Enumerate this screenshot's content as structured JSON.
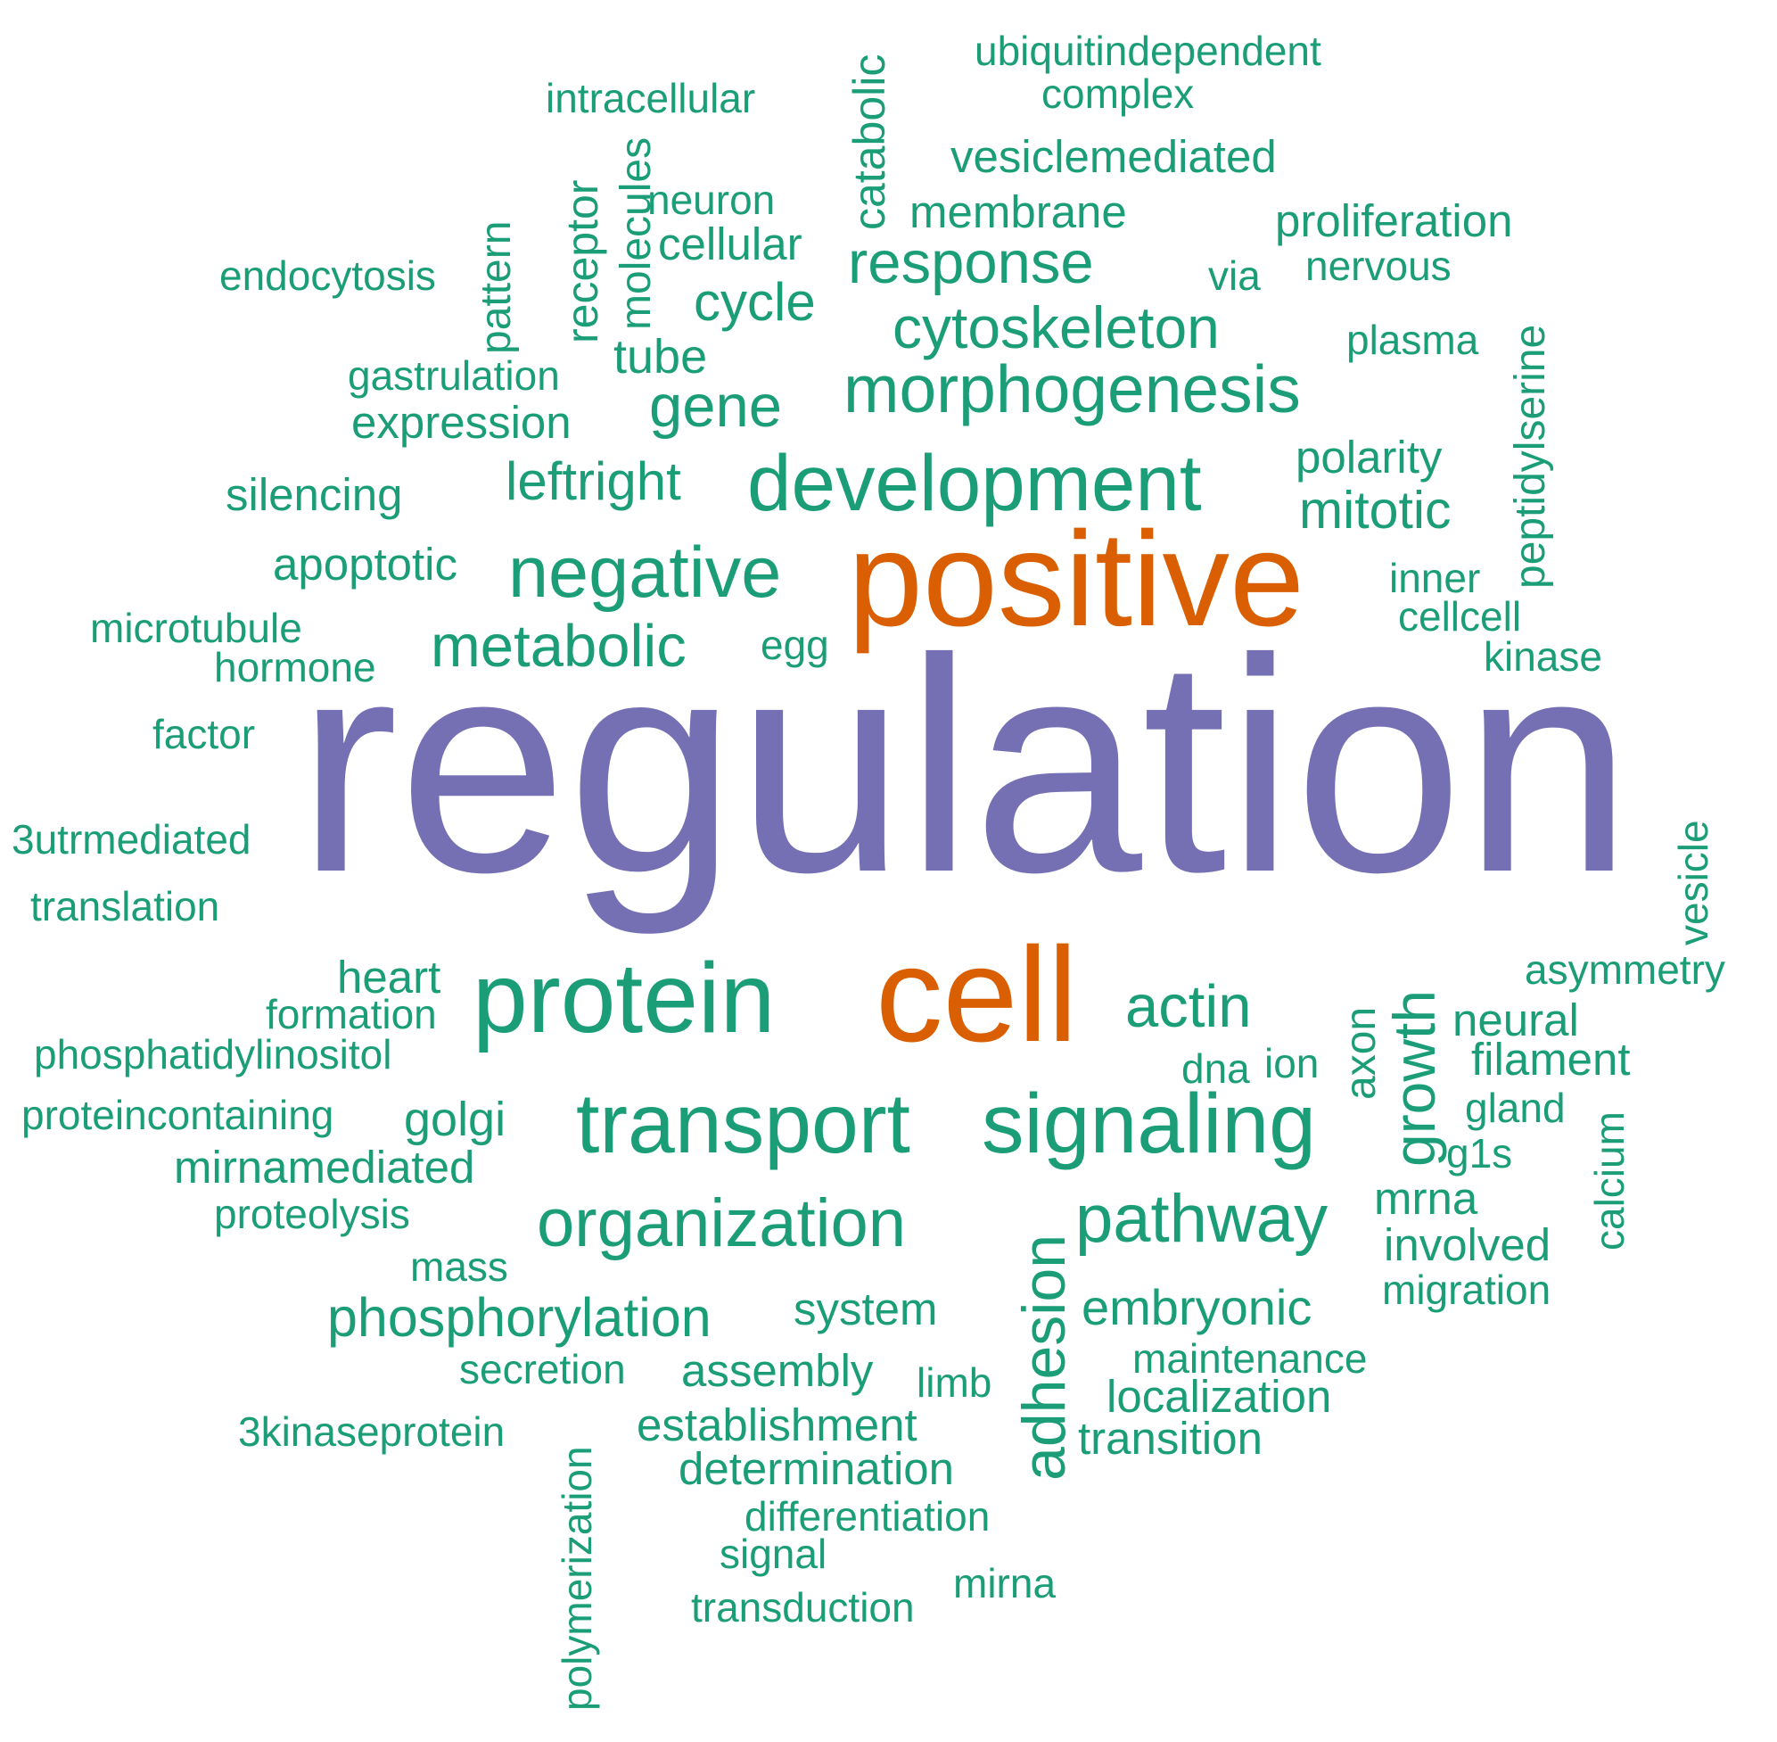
{
  "words": {
    "regulation": "regulation",
    "positive": "positive",
    "cell": "cell",
    "protein": "protein",
    "transport": "transport",
    "signaling": "signaling",
    "development": "development",
    "morphogenesis": "morphogenesis",
    "negative": "negative",
    "organization": "organization",
    "pathway": "pathway",
    "adhesion": "adhesion",
    "cytoskeleton": "cytoskeleton",
    "metabolic": "metabolic",
    "response": "response",
    "actin": "actin",
    "gene": "gene",
    "phosphorylation": "phosphorylation",
    "growth": "growth",
    "leftright": "leftright",
    "cycle": "cycle",
    "mitotic": "mitotic",
    "embryonic": "embryonic",
    "tube": "tube",
    "expression": "expression",
    "system": "system",
    "determination": "determination",
    "establishment": "establishment",
    "assembly": "assembly",
    "localization": "localization",
    "transition": "transition",
    "golgi": "golgi",
    "mirnamediated": "mirnamediated",
    "heart": "heart",
    "silencing": "silencing",
    "vesiclemediated": "vesiclemediated",
    "membrane": "membrane",
    "proliferation": "proliferation",
    "cellular": "cellular",
    "apoptotic": "apoptotic",
    "polarity": "polarity",
    "neural": "neural",
    "filament": "filament",
    "involved": "involved",
    "mrna": "mrna",
    "intracellular": "intracellular",
    "ubiquitindependent": "ubiquitindependent",
    "complex": "complex",
    "catabolic": "catabolic",
    "neuron": "neuron",
    "molecules": "molecules",
    "receptor": "receptor",
    "pattern": "pattern",
    "endocytosis": "endocytosis",
    "via": "via",
    "nervous": "nervous",
    "plasma": "plasma",
    "peptidylserine": "peptidylserine",
    "gastrulation": "gastrulation",
    "inner": "inner",
    "cellcell": "cellcell",
    "kinase": "kinase",
    "egg": "egg",
    "microtubule": "microtubule",
    "hormone": "hormone",
    "factor": "factor",
    "3utrmediated": "3utrmediated",
    "translation": "translation",
    "vesicle": "vesicle",
    "asymmetry": "asymmetry",
    "formation": "formation",
    "phosphatidylinositol": "phosphatidylinositol",
    "proteincontaining": "proteincontaining",
    "dna": "dna",
    "ion": "ion",
    "axon": "axon",
    "gland": "gland",
    "g1s": "g1s",
    "calcium": "calcium",
    "proteolysis": "proteolysis",
    "mass": "mass",
    "migration": "migration",
    "secretion": "secretion",
    "maintenance": "maintenance",
    "limb": "limb",
    "3kinaseprotein": "3kinaseprotein",
    "polymerization": "polymerization",
    "differentiation": "differentiation",
    "signal": "signal",
    "mirna": "mirna",
    "transduction": "transduction"
  },
  "colors": {
    "green": "#1b9e77",
    "orange": "#d95f02",
    "purple": "#7570b3"
  }
}
